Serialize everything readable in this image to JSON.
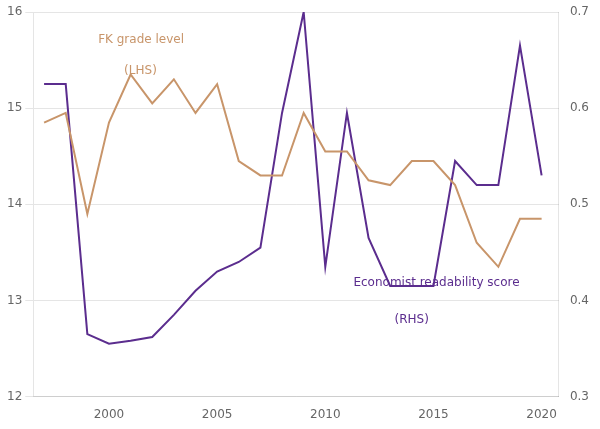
{
  "chart_data": {
    "type": "line",
    "x": [
      1997,
      1998,
      1999,
      2000,
      2001,
      2002,
      2003,
      2004,
      2005,
      2006,
      2007,
      2008,
      2009,
      2010,
      2011,
      2012,
      2013,
      2014,
      2015,
      2016,
      2017,
      2018,
      2019,
      2020
    ],
    "series": [
      {
        "name": "FK grade level",
        "color": "#C8956A",
        "values": [
          14.85,
          14.95,
          13.9,
          14.85,
          15.35,
          15.05,
          15.3,
          14.95,
          15.25,
          14.45,
          14.3,
          14.3,
          14.95,
          14.55,
          14.55,
          14.25,
          14.2,
          14.45,
          14.45,
          14.2,
          13.6,
          13.35,
          13.85,
          13.85
        ]
      },
      {
        "name": "Economist readability score",
        "color": "#5B2D8E",
        "axis": "y2",
        "values": [
          0.625,
          0.625,
          0.365,
          0.355,
          0.358,
          0.362,
          0.385,
          0.41,
          0.43,
          0.44,
          0.455,
          0.595,
          0.7,
          0.435,
          0.595,
          0.465,
          0.415,
          0.415,
          0.415,
          0.545,
          0.52,
          0.52,
          0.665,
          0.53
        ]
      }
    ],
    "xlim": [
      1996.5,
      2020.8
    ],
    "xticks": [
      2000,
      2005,
      2010,
      2015,
      2020
    ],
    "ylim": [
      12,
      16
    ],
    "yticks": [
      12,
      13,
      14,
      15,
      16
    ],
    "y2lim": [
      0.3,
      0.7
    ],
    "y2ticks": [
      0.3,
      0.4,
      0.5,
      0.6,
      0.7
    ],
    "grid": "y",
    "annotations": [
      {
        "text": "FK grade level",
        "x": 1999.5,
        "y": 15.68,
        "color": "#C8956A"
      },
      {
        "text": "(LHS)",
        "x": 2000.7,
        "y": 15.35,
        "color": "#C8956A"
      },
      {
        "text": "Economist readability score",
        "x": 2011.3,
        "y": 13.15,
        "color": "#5B2D8E"
      },
      {
        "text": "(RHS)",
        "x": 2013.2,
        "y": 12.77,
        "color": "#5B2D8E"
      }
    ]
  }
}
